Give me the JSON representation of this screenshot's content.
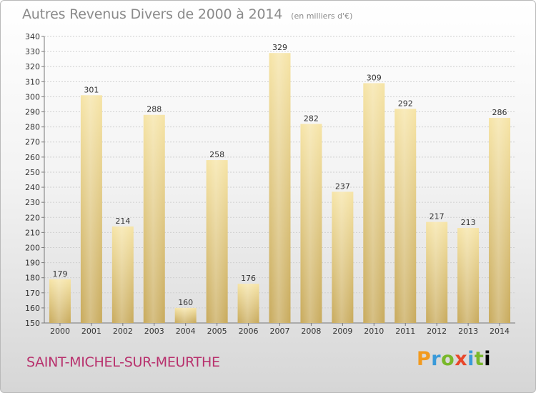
{
  "title": "Autres Revenus Divers de 2000 à 2014",
  "subtitle": "(en milliers d'€)",
  "location": "SAINT-MICHEL-SUR-MEURTHE",
  "logo": [
    "P",
    "r",
    "o",
    "x",
    "i",
    "t",
    "i"
  ],
  "colors": {
    "bar_top": "#f6e4a6",
    "bar_bottom": "#c8aa5c",
    "grid": "#cfcfcf",
    "axis": "#777777",
    "location": "#b8316d"
  },
  "chart_data": {
    "type": "bar",
    "title": "Autres Revenus Divers de 2000 à 2014",
    "subtitle": "(en milliers d'€)",
    "categories": [
      "2000",
      "2001",
      "2002",
      "2003",
      "2004",
      "2005",
      "2006",
      "2007",
      "2008",
      "2009",
      "2010",
      "2011",
      "2012",
      "2013",
      "2014"
    ],
    "values": [
      179,
      301,
      214,
      288,
      160,
      258,
      176,
      329,
      282,
      237,
      309,
      292,
      217,
      213,
      286
    ],
    "ylim": [
      150,
      340
    ],
    "ytick_step": 10,
    "grid": true,
    "legend": "none"
  }
}
